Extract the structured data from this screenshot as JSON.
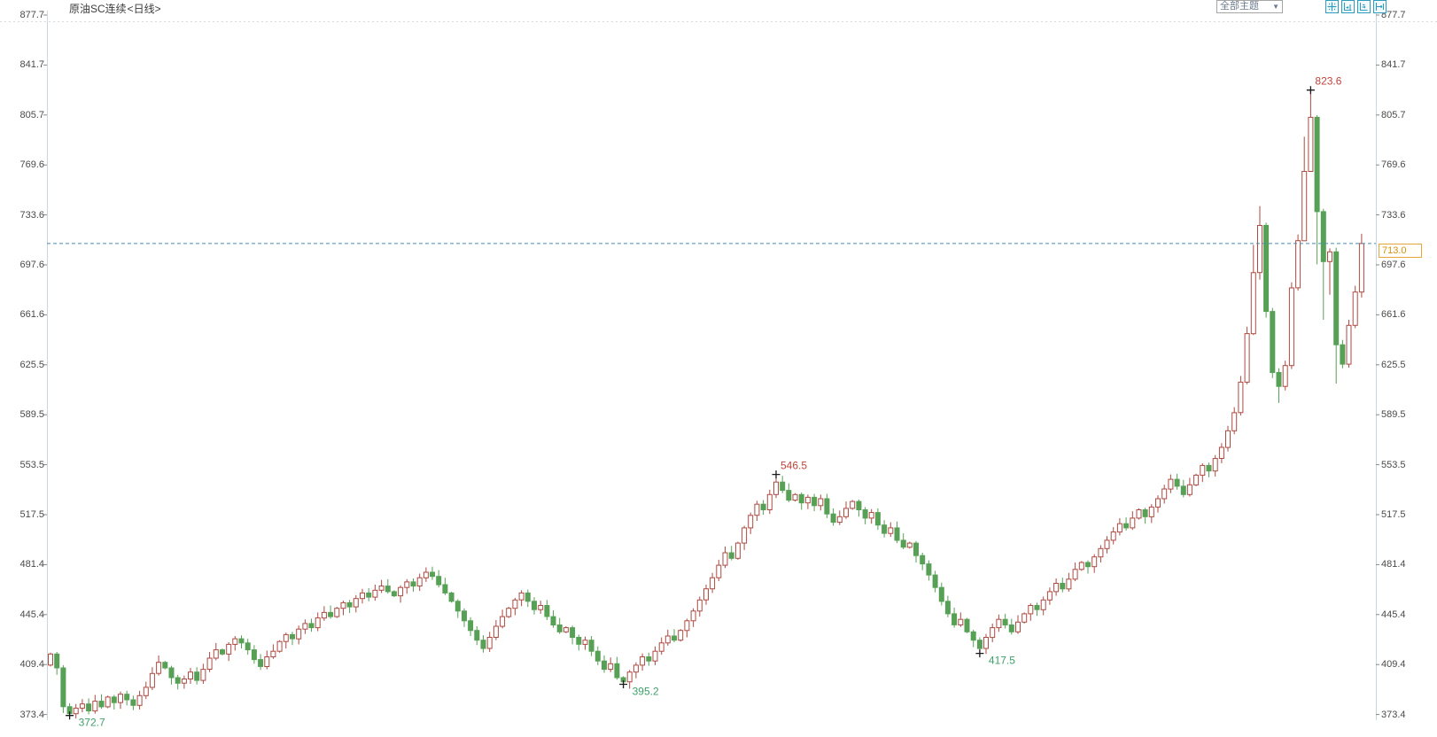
{
  "header": {
    "title": "原油SC连续",
    "period_label": "<日线>"
  },
  "toolbar": {
    "theme_dropdown_label": "全部主题",
    "theme_dropdown_arrow": "▼",
    "buttons": [
      {
        "name": "crosshair",
        "icon": "crosshair-icon"
      },
      {
        "name": "fit-left",
        "icon": "fit-left-icon"
      },
      {
        "name": "fit-right",
        "icon": "fit-right-icon"
      },
      {
        "name": "go-to-latest",
        "icon": "go-to-latest-icon"
      }
    ]
  },
  "price_line": {
    "value": "713.0",
    "line_color": "#4a8ab5",
    "tag_border_color": "#e5a43c",
    "tag_text_color": "#d6930f"
  },
  "colors": {
    "up_candle": "#ad4a42",
    "down_candle": "#56a156",
    "annotation_high": "#c0443c",
    "annotation_low": "#3fa06a",
    "axis_line": "#ccd6de",
    "tick": "#8a8a8a",
    "title_text": "#3c3c3c",
    "period_orange": "#e8821e",
    "grid_dotted": "#d9d9d9"
  },
  "chart_data": {
    "type": "candlestick",
    "title": "原油SC连续",
    "subtitle": "日线",
    "legend": "none",
    "grid": "none",
    "x_axis_labels": "none visible",
    "y_axis_labels": [
      "877.7",
      "841.7",
      "805.7",
      "769.6",
      "733.6",
      "697.6",
      "661.6",
      "625.5",
      "589.5",
      "553.5",
      "517.5",
      "481.4",
      "445.4",
      "409.4",
      "373.4"
    ],
    "ylim": [
      373.4,
      877.7
    ],
    "latest_close": 713.0,
    "first_open": 409,
    "closes": [
      417,
      407,
      379,
      374,
      378,
      381,
      376,
      383,
      379,
      386,
      382,
      388,
      384,
      380,
      387,
      393,
      403,
      411,
      407,
      400,
      396,
      399,
      404,
      398,
      406,
      414,
      420,
      417,
      424,
      428,
      425,
      420,
      413,
      408,
      415,
      419,
      426,
      431,
      428,
      435,
      439,
      436,
      443,
      447,
      444,
      450,
      454,
      451,
      457,
      461,
      458,
      463,
      466,
      462,
      459,
      465,
      469,
      466,
      472,
      476,
      473,
      467,
      461,
      455,
      448,
      441,
      434,
      427,
      421,
      429,
      437,
      444,
      450,
      456,
      461,
      455,
      449,
      452,
      444,
      438,
      433,
      436,
      429,
      424,
      427,
      419,
      412,
      406,
      410,
      400,
      397,
      404,
      409,
      415,
      412,
      419,
      425,
      430,
      427,
      434,
      441,
      448,
      456,
      464,
      472,
      481,
      490,
      486,
      497,
      508,
      517,
      525,
      521,
      532,
      541,
      535,
      528,
      532,
      526,
      530,
      524,
      529,
      518,
      512,
      516,
      522,
      527,
      521,
      515,
      519,
      510,
      504,
      508,
      499,
      494,
      497,
      488,
      482,
      474,
      465,
      455,
      446,
      438,
      442,
      433,
      427,
      421,
      429,
      436,
      442,
      438,
      433,
      440,
      446,
      452,
      449,
      456,
      462,
      468,
      464,
      471,
      478,
      483,
      480,
      487,
      493,
      499,
      505,
      511,
      508,
      515,
      521,
      516,
      523,
      529,
      536,
      543,
      538,
      532,
      539,
      546,
      553,
      549,
      558,
      566,
      578,
      591,
      613,
      648,
      692,
      726,
      664,
      620,
      610,
      625,
      681,
      715,
      765,
      804,
      736,
      700,
      707,
      640,
      626,
      654,
      678,
      713
    ],
    "wick_overrides": {
      "3": {
        "low": 372.7
      },
      "90": {
        "low": 395.2
      },
      "114": {
        "high": 546.5
      },
      "146": {
        "low": 417.5
      },
      "189": {
        "high": 712
      },
      "190": {
        "high": 740
      },
      "193": {
        "low": 598
      },
      "197": {
        "high": 790,
        "low": 733
      },
      "198": {
        "high": 823.6,
        "low": 770
      },
      "199": {
        "low": 698
      },
      "200": {
        "low": 658
      },
      "201": {
        "low": 676
      },
      "202": {
        "low": 612
      },
      "206": {
        "high": 720,
        "low": 674
      }
    },
    "annotations": [
      {
        "index": 3,
        "price": 372.7,
        "label": "372.7",
        "kind": "low"
      },
      {
        "index": 90,
        "price": 395.2,
        "label": "395.2",
        "kind": "low"
      },
      {
        "index": 114,
        "price": 546.5,
        "label": "546.5",
        "kind": "high"
      },
      {
        "index": 146,
        "price": 417.5,
        "label": "417.5",
        "kind": "low"
      },
      {
        "index": 198,
        "price": 823.6,
        "label": "823.6",
        "kind": "high"
      }
    ]
  }
}
